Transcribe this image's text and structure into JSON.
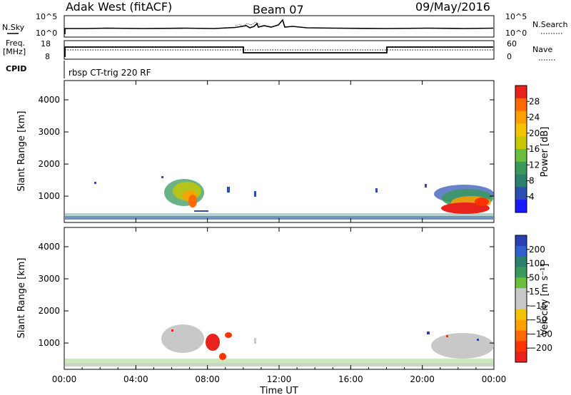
{
  "header": {
    "station": "Adak West (fitACF)",
    "beam": "Beam 07",
    "date": "09/May/2016"
  },
  "nsky_panel": {
    "label": "N.Sky",
    "right_label": "N.Search",
    "ticks_left": [
      "10^5",
      "10^0"
    ],
    "ticks_right": [
      "10^5",
      "10^0"
    ]
  },
  "freq_panel": {
    "label_line1": "Freq.",
    "label_line2": "[MHz]",
    "right_label": "Nave",
    "ticks_left": [
      "18",
      "8"
    ],
    "ticks_right": [
      "60",
      "0"
    ]
  },
  "cpid": {
    "label": "CPID",
    "program": "rbsp CT-trig 220 RF"
  },
  "chart_data": [
    {
      "type": "heatmap",
      "name": "power",
      "ylabel": "Slant Range [km]",
      "y_ticks": [
        "4000",
        "3000",
        "2000",
        "1000"
      ],
      "ylim": [
        180,
        4600
      ],
      "colorbar_label": "Power [dB]",
      "colorbar_ticks": [
        "28",
        "24",
        "20",
        "16",
        "12",
        "8",
        "4"
      ],
      "colorbar_colors": [
        "#e8231e",
        "#ff6a00",
        "#ffa000",
        "#f4c400",
        "#c8c800",
        "#6cbf3c",
        "#3a9a5c",
        "#2d7f6e",
        "#2a4fb0",
        "#1a1aff"
      ],
      "features": [
        {
          "time_range": [
            "05:50",
            "08:00"
          ],
          "range_km": [
            500,
            1250
          ],
          "level": "8-24 dB"
        },
        {
          "time_range": [
            "21:00",
            "24:00"
          ],
          "range_km": [
            300,
            1300
          ],
          "level": "4-32 dB"
        },
        {
          "time_range": [
            "00:00",
            "24:00"
          ],
          "range_km": [
            180,
            330
          ],
          "level": "4-20 dB"
        }
      ]
    },
    {
      "type": "heatmap",
      "name": "velocity",
      "ylabel": "Slant Range [km]",
      "y_ticks": [
        "4000",
        "3000",
        "2000",
        "1000"
      ],
      "ylim": [
        180,
        4600
      ],
      "colorbar_label": "Velocity [m s⁻¹]",
      "colorbar_ticks": [
        "200",
        "100",
        "50",
        "15",
        "−15",
        "−50",
        "−100",
        "−200"
      ],
      "colorbar_colors": [
        "#2a3fb0",
        "#3060d0",
        "#2d7f6e",
        "#3a9a5c",
        "#6cbf3c",
        "#c8c8c8",
        "#c8c8c8",
        "#f4c400",
        "#ffa000",
        "#ff6a00",
        "#ff3300",
        "#e8231e"
      ],
      "features": [
        {
          "time_range": [
            "05:50",
            "08:00"
          ],
          "range_km": [
            500,
            1250
          ],
          "level": "−15 to 15 m/s"
        },
        {
          "time_range": [
            "07:40",
            "08:40"
          ],
          "range_km": [
            500,
            900
          ],
          "level": "−200 to −100 m/s"
        },
        {
          "time_range": [
            "20:00",
            "24:00"
          ],
          "range_km": [
            300,
            1300
          ],
          "level": "−15 to 15 m/s"
        }
      ]
    }
  ],
  "x_axis": {
    "label": "Time UT",
    "ticks": [
      "00:00",
      "04:00",
      "08:00",
      "12:00",
      "16:00",
      "20:00",
      "00:00"
    ]
  }
}
